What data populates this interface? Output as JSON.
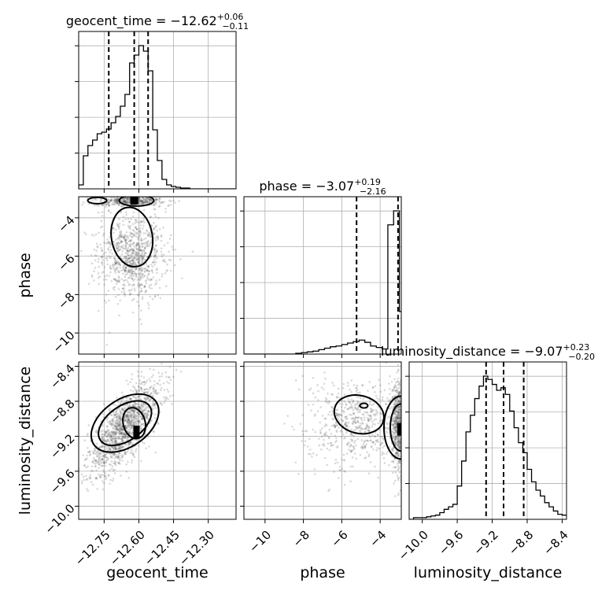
{
  "chart_data": {
    "type": "corner",
    "parameters": [
      {
        "name": "geocent_time",
        "range": [
          -12.86,
          -12.18
        ],
        "ticks": [
          -12.75,
          -12.6,
          -12.45,
          -12.3
        ],
        "tick_labels": [
          "−12.75",
          "−12.60",
          "−12.45",
          "−12.30"
        ],
        "median": "−12.62",
        "plus": "+0.06",
        "minus": "−0.11",
        "quantiles": [
          -12.73,
          -12.62,
          -12.56
        ],
        "hist_edges": [
          -12.86,
          -12.84,
          -12.82,
          -12.8,
          -12.78,
          -12.76,
          -12.74,
          -12.72,
          -12.7,
          -12.68,
          -12.66,
          -12.64,
          -12.62,
          -12.6,
          -12.58,
          -12.56,
          -12.54,
          -12.52,
          -12.5,
          -12.48,
          -12.46,
          -12.44,
          -12.42,
          -12.4,
          -12.38,
          -12.36,
          -12.34,
          -12.32,
          -12.3,
          -12.28,
          -12.26,
          -12.24,
          -12.22,
          -12.2,
          -12.18
        ],
        "hist_counts": [
          5,
          42,
          55,
          62,
          70,
          72,
          76,
          84,
          92,
          105,
          120,
          160,
          170,
          182,
          175,
          150,
          75,
          36,
          12,
          5,
          3,
          2,
          1,
          1,
          0,
          0,
          0,
          0,
          0,
          0,
          0,
          0,
          0,
          0
        ]
      },
      {
        "name": "phase",
        "range": [
          -11.1,
          -2.9
        ],
        "ticks": [
          -10,
          -8,
          -6,
          -4
        ],
        "tick_labels": [
          "−10",
          "−8",
          "−6",
          "−4"
        ],
        "median": "−3.07",
        "plus": "+0.19",
        "minus": "−2.16",
        "quantiles": [
          -5.23,
          -3.07,
          -2.88
        ],
        "hist_edges": [
          -11.1,
          -10.8,
          -10.5,
          -10.2,
          -9.9,
          -9.6,
          -9.3,
          -9.0,
          -8.7,
          -8.4,
          -8.1,
          -7.8,
          -7.5,
          -7.2,
          -6.9,
          -6.6,
          -6.3,
          -6.0,
          -5.7,
          -5.4,
          -5.1,
          -4.8,
          -4.5,
          -4.2,
          -3.9,
          -3.6,
          -3.3,
          -3.0,
          -2.7
        ],
        "hist_counts": [
          0,
          0,
          0,
          0,
          0,
          0,
          0,
          0,
          0,
          1,
          2,
          3,
          4,
          6,
          8,
          10,
          11,
          13,
          15,
          17,
          19,
          16,
          11,
          9,
          7,
          176,
          195,
          58
        ]
      },
      {
        "name": "luminosity_distance",
        "range": [
          -10.15,
          -8.35
        ],
        "ticks": [
          -10.0,
          -9.6,
          -9.2,
          -8.8,
          -8.4
        ],
        "tick_labels": [
          "−10.0",
          "−9.6",
          "−9.2",
          "−8.8",
          "−8.4"
        ],
        "median": "−9.07",
        "plus": "+0.23",
        "minus": "−0.20",
        "quantiles": [
          -9.27,
          -9.07,
          -8.84
        ],
        "hist_edges": [
          -10.15,
          -10.1,
          -10.05,
          -10.0,
          -9.95,
          -9.9,
          -9.85,
          -9.8,
          -9.75,
          -9.7,
          -9.65,
          -9.6,
          -9.55,
          -9.5,
          -9.45,
          -9.4,
          -9.35,
          -9.3,
          -9.25,
          -9.2,
          -9.15,
          -9.1,
          -9.05,
          -9.0,
          -8.95,
          -8.9,
          -8.85,
          -8.8,
          -8.75,
          -8.7,
          -8.65,
          -8.6,
          -8.55,
          -8.5,
          -8.45,
          -8.4,
          -8.35
        ],
        "hist_counts": [
          0,
          2,
          2,
          2,
          3,
          4,
          5,
          8,
          12,
          15,
          18,
          40,
          70,
          105,
          125,
          145,
          160,
          172,
          168,
          162,
          155,
          158,
          150,
          130,
          110,
          92,
          80,
          60,
          45,
          35,
          28,
          20,
          15,
          10,
          6,
          5
        ]
      }
    ],
    "title_format": "{name} = {median}",
    "grid": true,
    "legend": "none"
  }
}
